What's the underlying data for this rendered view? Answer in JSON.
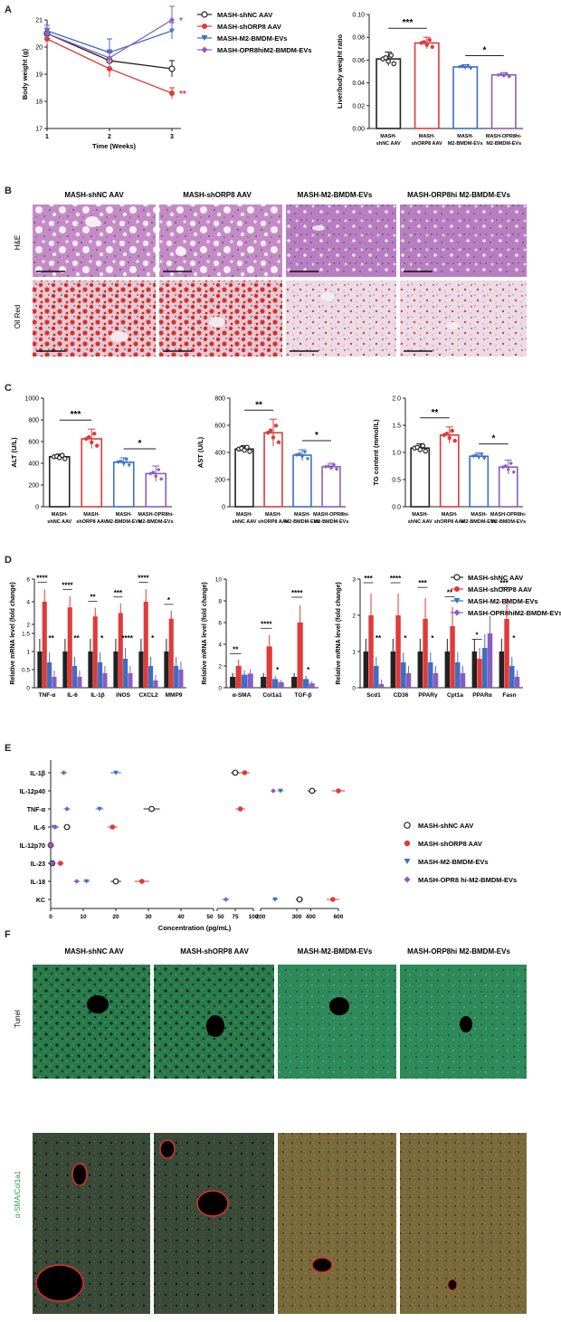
{
  "figure": {
    "panel_labels": [
      "A",
      "B",
      "C",
      "D",
      "E",
      "F"
    ],
    "groups": [
      "MASH-shNC AAV",
      "MASH-shORP8 AAV",
      "MASH-M2-BMDM-EVs",
      "MASH-ORP8hi M2-BMDM-EVs"
    ],
    "groups_short": [
      [
        "MASH-",
        "shNC AAV"
      ],
      [
        "MASH-",
        "shORP8 AAV"
      ],
      [
        "MASH-",
        "M2-BMDM-EVs"
      ],
      [
        "MASH-OPR8hi-",
        "M2-BMDM-EVs"
      ]
    ],
    "colors": [
      "#222222",
      "#e03a3a",
      "#3a6fc4",
      "#8a5cc0"
    ],
    "legend_labels": [
      "MASH-shNC AAV",
      "MASH-shORP8 AAV",
      "MASH-M2-BMDM-EVs",
      "MASH-OPR8hiM2-BMDM-EVs"
    ]
  },
  "panel_b": {
    "row_labels": [
      "H&E",
      "Oil Red"
    ],
    "col_titles": [
      "MASH-shNC AAV",
      "MASH-shORP8 AAV",
      "MASH-M2-BMDM-EVs",
      "MASH-ORP8hi M2-BMDM-EVs"
    ]
  },
  "panel_f": {
    "row_labels": [
      "Tunel",
      "α-SMA/Col1a1"
    ],
    "col_titles": [
      "MASH-shNC AAV",
      "MASH-shORP8 AAV",
      "MASH-M2-BMDM-EVs",
      "MASH-ORP8hi M2-BMDM-EVs"
    ]
  },
  "chart_data": [
    {
      "id": "A-left",
      "type": "line",
      "xlabel": "Time (Weeks)",
      "ylabel": "Body weight (g)",
      "x": [
        1,
        2,
        3
      ],
      "xlim": [
        1,
        3
      ],
      "ylim": [
        17,
        21
      ],
      "yticks": [
        17,
        18,
        19,
        20,
        21
      ],
      "series": [
        {
          "name": "MASH-shNC AAV",
          "values": [
            20.5,
            19.5,
            19.2
          ],
          "err": [
            0.2,
            0.3,
            0.3
          ]
        },
        {
          "name": "MASH-shORP8 AAV",
          "values": [
            20.3,
            19.2,
            18.3
          ],
          "err": [
            0.2,
            0.3,
            0.2
          ]
        },
        {
          "name": "MASH-M2-BMDM-EVs",
          "values": [
            20.6,
            19.8,
            20.6
          ],
          "err": [
            0.2,
            0.5,
            0.3
          ]
        },
        {
          "name": "MASH-OPR8hiM2-BMDM-EVs",
          "values": [
            20.5,
            19.6,
            21.0
          ],
          "err": [
            0.2,
            0.3,
            0.5
          ]
        }
      ],
      "annotations": [
        {
          "series": 3,
          "text": "*"
        },
        {
          "series": 1,
          "text": "**"
        }
      ]
    },
    {
      "id": "A-right",
      "type": "bar",
      "ylabel": "Liver/body weight ratio",
      "ylim": [
        0,
        0.1
      ],
      "yticks": [
        0.0,
        0.02,
        0.04,
        0.06,
        0.08,
        0.1
      ],
      "values": [
        0.061,
        0.075,
        0.054,
        0.047
      ],
      "err": [
        0.006,
        0.005,
        0.002,
        0.002
      ],
      "sig": [
        {
          "a": 0,
          "b": 1,
          "text": "***"
        },
        {
          "a": 2,
          "b": 3,
          "text": "*"
        }
      ]
    },
    {
      "id": "C-ALT",
      "type": "bar",
      "ylabel": "ALT (U/L)",
      "ylim": [
        0,
        1000
      ],
      "yticks": [
        0,
        200,
        400,
        600,
        800,
        1000
      ],
      "values": [
        460,
        625,
        410,
        305
      ],
      "err": [
        25,
        90,
        40,
        70
      ],
      "sig": [
        {
          "a": 0,
          "b": 1,
          "text": "***"
        },
        {
          "a": 2,
          "b": 3,
          "text": "*"
        }
      ]
    },
    {
      "id": "C-AST",
      "type": "bar",
      "ylabel": "AST (U/L)",
      "ylim": [
        0,
        800
      ],
      "yticks": [
        0,
        200,
        400,
        600,
        800
      ],
      "values": [
        425,
        545,
        380,
        295
      ],
      "err": [
        25,
        100,
        40,
        25
      ],
      "sig": [
        {
          "a": 0,
          "b": 1,
          "text": "**"
        },
        {
          "a": 2,
          "b": 3,
          "text": "*"
        }
      ]
    },
    {
      "id": "C-TG",
      "type": "bar",
      "ylabel": "TG content (mmol/L)",
      "ylim": [
        0,
        2
      ],
      "yticks": [
        0,
        0.5,
        1.0,
        1.5,
        2.0
      ],
      "values": [
        1.08,
        1.32,
        0.93,
        0.73
      ],
      "err": [
        0.08,
        0.15,
        0.06,
        0.13
      ],
      "sig": [
        {
          "a": 0,
          "b": 1,
          "text": "**"
        },
        {
          "a": 2,
          "b": 3,
          "text": "*"
        }
      ]
    },
    {
      "id": "D-1",
      "type": "bar",
      "ylabel": "Relative mRNA level (fold change)",
      "categories": [
        "TNF-α",
        "IL-6",
        "IL-1β",
        "iNOS",
        "CXCL2",
        "MMP9"
      ],
      "yticks": [
        0,
        0.5,
        1.0,
        1.5,
        2,
        4,
        6
      ],
      "series": [
        {
          "name": "MASH-shNC AAV",
          "values": [
            1.0,
            1.0,
            1.0,
            1.0,
            1.0,
            1.0
          ]
        },
        {
          "name": "MASH-shORP8 AAV",
          "values": [
            4.0,
            3.5,
            2.7,
            3.0,
            4.0,
            2.5
          ]
        },
        {
          "name": "MASH-M2-BMDM-EVs",
          "values": [
            0.7,
            0.6,
            0.7,
            0.8,
            0.6,
            0.6
          ]
        },
        {
          "name": "MASH-OPR8hiM2-BMDM-EVs",
          "values": [
            0.3,
            0.3,
            0.4,
            0.4,
            0.2,
            0.5
          ]
        }
      ],
      "sig_top": [
        "****",
        "****",
        "**",
        "***",
        "****",
        "*"
      ],
      "sig_low": [
        "**",
        "**",
        "*",
        "****",
        "*",
        ""
      ]
    },
    {
      "id": "D-2",
      "type": "bar",
      "ylabel": "Relative mRNA level (fold change)",
      "categories": [
        "α-SMA",
        "Col1a1",
        "TGF-β"
      ],
      "ylim": [
        0,
        10
      ],
      "yticks": [
        0,
        2,
        4,
        6,
        8,
        10
      ],
      "series": [
        {
          "name": "MASH-shNC AAV",
          "values": [
            1.0,
            1.0,
            1.0
          ]
        },
        {
          "name": "MASH-shORP8 AAV",
          "values": [
            2.0,
            3.8,
            6.0
          ]
        },
        {
          "name": "MASH-M2-BMDM-EVs",
          "values": [
            1.2,
            0.8,
            0.8
          ]
        },
        {
          "name": "MASH-OPR8hiM2-BMDM-EVs",
          "values": [
            1.3,
            0.5,
            0.4
          ]
        }
      ],
      "sig_top": [
        "**",
        "****",
        "****"
      ],
      "sig_low": [
        "",
        "*",
        "*"
      ]
    },
    {
      "id": "D-3",
      "type": "bar",
      "ylabel": "Relative mRNA level (fold change)",
      "categories": [
        "Scd1",
        "CD36",
        "PPARγ",
        "Cpt1a",
        "PPARα",
        "Fasn"
      ],
      "ylim": [
        0,
        3
      ],
      "yticks": [
        0,
        1,
        2,
        3
      ],
      "series": [
        {
          "name": "MASH-shNC AAV",
          "values": [
            1.0,
            1.0,
            1.0,
            1.0,
            1.0,
            1.0
          ]
        },
        {
          "name": "MASH-shORP8 AAV",
          "values": [
            2.0,
            2.0,
            1.9,
            1.7,
            0.8,
            1.9
          ]
        },
        {
          "name": "MASH-M2-BMDM-EVs",
          "values": [
            0.6,
            0.7,
            0.7,
            0.7,
            1.1,
            0.6
          ]
        },
        {
          "name": "MASH-OPR8hiM2-BMDM-EVs",
          "values": [
            0.1,
            0.4,
            0.4,
            0.4,
            1.5,
            0.3
          ]
        }
      ],
      "sig_top": [
        "***",
        "****",
        "***",
        "**",
        "*",
        "***"
      ],
      "sig_low": [
        "**",
        "*",
        "*",
        "",
        "",
        "*"
      ]
    },
    {
      "id": "E",
      "type": "scatter",
      "xlabel": "Concentration (pg/mL)",
      "categories": [
        "IL-1β",
        "IL-12p40",
        "TNF-α",
        "IL-6",
        "IL-12p70",
        "IL-23",
        "IL-18",
        "KC"
      ],
      "x_tick_labels": [
        "0",
        "10",
        "20",
        "30",
        "40",
        "50",
        "50",
        "75",
        "100",
        "200",
        "300",
        "400",
        "600"
      ],
      "series": [
        {
          "name": "MASH-shNC AAV",
          "values": [
            75,
            410,
            31,
            5,
            0,
            0.5,
            20,
            320
          ]
        },
        {
          "name": "MASH-shORP8 AAV",
          "values": [
            88,
            600,
            82,
            19,
            0,
            3,
            28,
            560
          ]
        },
        {
          "name": "MASH-M2-BMDM-EVs",
          "values": [
            20,
            210,
            15,
            1,
            0,
            0.5,
            11,
            180
          ]
        },
        {
          "name": "MASH-OPR8hiM2-BMDM-EVs",
          "values": [
            4,
            170,
            5,
            1.5,
            0,
            0.5,
            8,
            62
          ]
        }
      ],
      "legend_labels": [
        "MASH-shNC AAV",
        "MASH-shORP8 AAV",
        "MASH-M2-BMDM-EVs",
        "MASH-OPR8 hi-M2-BMDM-EVs"
      ]
    }
  ]
}
